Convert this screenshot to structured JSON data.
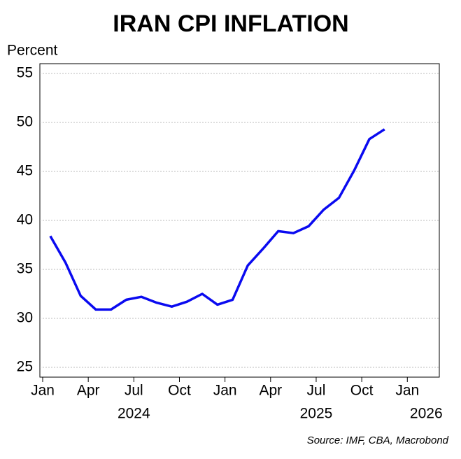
{
  "chart_data": {
    "type": "line",
    "title": "IRAN CPI INFLATION",
    "y_label": "Percent",
    "source": "Source: IMF, CBA, Macrobond",
    "x": [
      "2024-01",
      "2024-02",
      "2024-03",
      "2024-04",
      "2024-05",
      "2024-06",
      "2024-07",
      "2024-08",
      "2024-09",
      "2024-10",
      "2024-11",
      "2024-12",
      "2025-01",
      "2025-02",
      "2025-03",
      "2025-04",
      "2025-05",
      "2025-06",
      "2025-07",
      "2025-08",
      "2025-09",
      "2025-10",
      "2025-11"
    ],
    "series": [
      {
        "name": "Iran CPI inflation",
        "color": "#0a0af0",
        "values": [
          38.4,
          35.7,
          32.3,
          30.9,
          30.9,
          31.9,
          32.2,
          31.6,
          31.2,
          31.7,
          32.5,
          31.4,
          31.9,
          35.4,
          37.1,
          38.9,
          38.7,
          39.4,
          41.1,
          42.3,
          45.1,
          48.3,
          49.3
        ]
      }
    ],
    "xlim": [
      "2024-01",
      "2026-02"
    ],
    "xticks": [
      {
        "value": "2024-01",
        "label": "Jan"
      },
      {
        "value": "2024-04",
        "label": "Apr"
      },
      {
        "value": "2024-07",
        "label": "Jul"
      },
      {
        "value": "2024-10",
        "label": "Oct"
      },
      {
        "value": "2025-01",
        "label": "Jan"
      },
      {
        "value": "2025-04",
        "label": "Apr"
      },
      {
        "value": "2025-07",
        "label": "Jul"
      },
      {
        "value": "2025-10",
        "label": "Oct"
      },
      {
        "value": "2026-01",
        "label": "Jan"
      }
    ],
    "year_labels": [
      {
        "value": "2024-07",
        "label": "2024"
      },
      {
        "value": "2025-07",
        "label": "2025"
      },
      {
        "value": "2026-01",
        "label": "2026"
      }
    ],
    "ylim": [
      24,
      56
    ],
    "yticks": [
      25,
      30,
      35,
      40,
      45,
      50,
      55
    ],
    "grid": true
  }
}
